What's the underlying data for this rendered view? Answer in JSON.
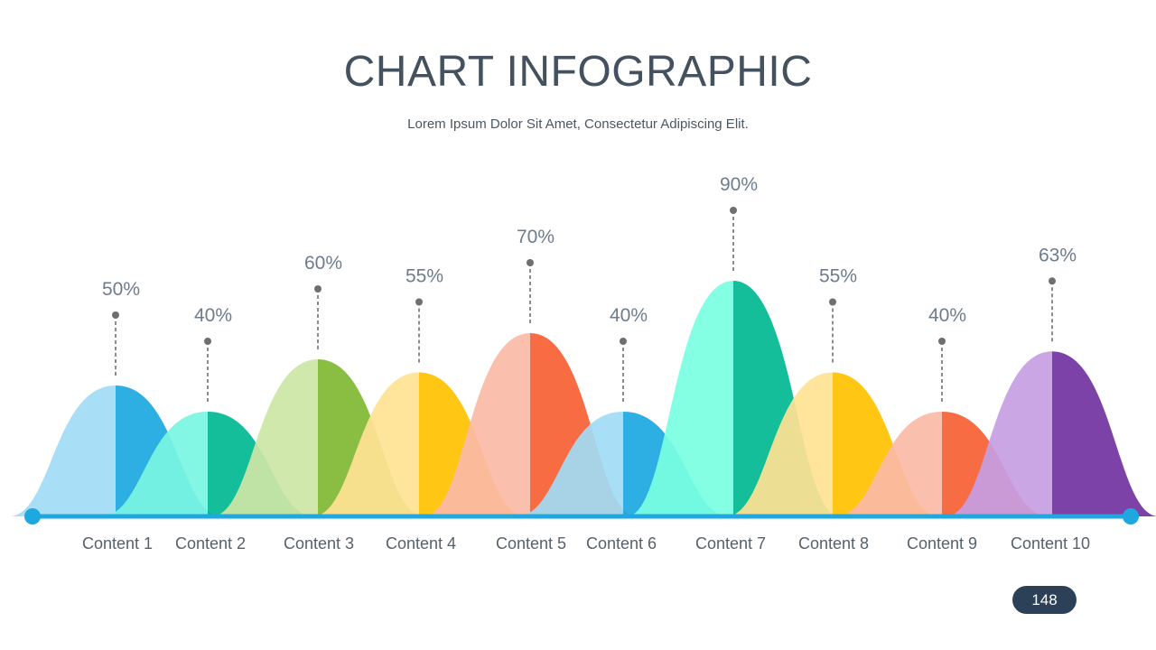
{
  "slide": {
    "title": "CHART INFOGRAPHIC",
    "subtitle": "Lorem Ipsum Dolor Sit Amet, Consectetur Adipiscing Elit.",
    "page_number": "148"
  },
  "chart_data": {
    "type": "area",
    "title": "CHART INFOGRAPHIC",
    "subtitle": "Lorem Ipsum Dolor Sit Amet, Consectetur Adipiscing Elit.",
    "xlabel": "",
    "ylabel": "",
    "ylim": [
      0,
      100
    ],
    "grid": false,
    "legend": "none",
    "axis_color": "#1ea8e0",
    "categories": [
      "Content 1",
      "Content 2",
      "Content 3",
      "Content 4",
      "Content 5",
      "Content 6",
      "Content 7",
      "Content 8",
      "Content 9",
      "Content 10"
    ],
    "values": [
      50,
      40,
      60,
      55,
      70,
      40,
      90,
      55,
      40,
      63
    ],
    "value_labels": [
      "50%",
      "40%",
      "60%",
      "55%",
      "70%",
      "40%",
      "90%",
      "55%",
      "40%",
      "63%"
    ],
    "colors_light": [
      "#a1dcf5",
      "#7af5e2",
      "#cde6a6",
      "#ffe294",
      "#fbbaa6",
      "#a1dcf5",
      "#7affe2",
      "#ffe294",
      "#fbbaa6",
      "#c59ee3"
    ],
    "colors_dark": [
      "#1ca8e1",
      "#00b892",
      "#7fb833",
      "#ffc100",
      "#f65f32",
      "#1ca8e1",
      "#00b892",
      "#ffc100",
      "#f65f32",
      "#7132a0"
    ]
  }
}
